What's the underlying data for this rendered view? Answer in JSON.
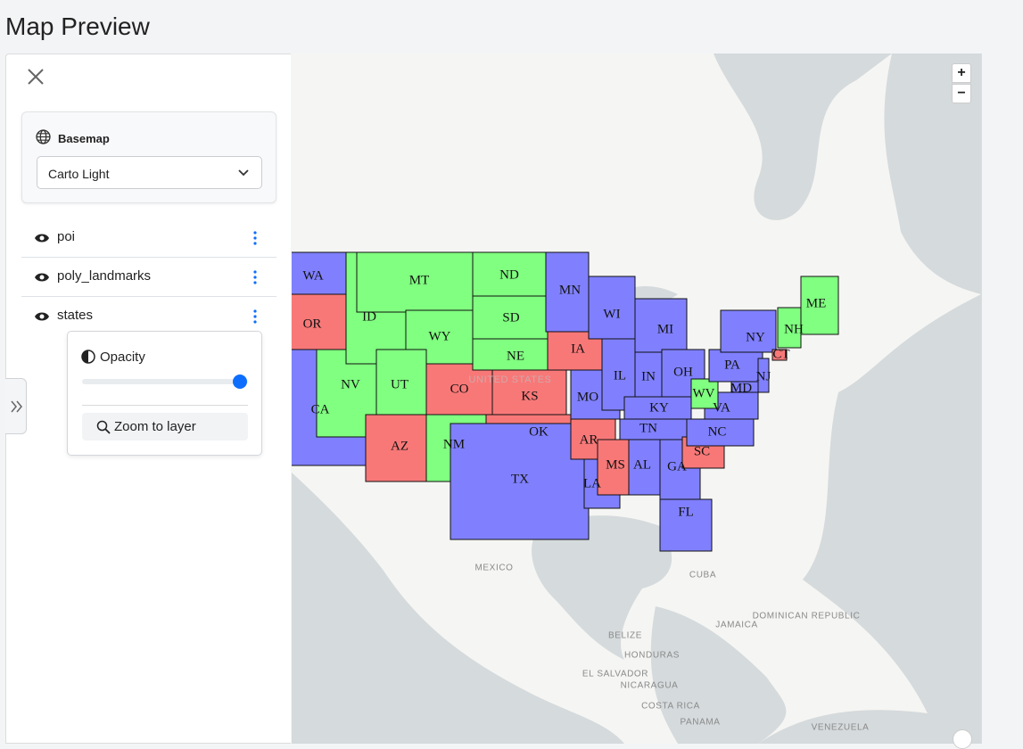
{
  "header": {
    "title": "Map Preview"
  },
  "sidebar": {
    "basemap": {
      "label": "Basemap",
      "selected": "Carto Light"
    },
    "layers": [
      {
        "name": "poi"
      },
      {
        "name": "poly_landmarks"
      },
      {
        "name": "states"
      }
    ],
    "layer_menu": {
      "opacity_label": "Opacity",
      "action": "Zoom to layer"
    }
  },
  "map": {
    "zoom": {
      "in": "+",
      "out": "−"
    },
    "place_labels": [
      "UNITED STATES",
      "MEXICO",
      "CUBA",
      "JAMAICA",
      "DOMINICAN REPUBLIC",
      "BELIZE",
      "HONDURAS",
      "EL SALVADOR",
      "NICARAGUA",
      "COSTA RICA",
      "PANAMA",
      "VENEZUELA"
    ],
    "states": [
      {
        "label": "WA",
        "color": "#8080ff"
      },
      {
        "label": "OR",
        "color": "#f87878"
      },
      {
        "label": "CA",
        "color": "#8080ff"
      },
      {
        "label": "NV",
        "color": "#80ff80"
      },
      {
        "label": "ID",
        "color": "#80ff80"
      },
      {
        "label": "MT",
        "color": "#80ff80"
      },
      {
        "label": "WY",
        "color": "#80ff80"
      },
      {
        "label": "UT",
        "color": "#80ff80"
      },
      {
        "label": "AZ",
        "color": "#f87878"
      },
      {
        "label": "CO",
        "color": "#f87878"
      },
      {
        "label": "NM",
        "color": "#80ff80"
      },
      {
        "label": "ND",
        "color": "#80ff80"
      },
      {
        "label": "SD",
        "color": "#80ff80"
      },
      {
        "label": "NE",
        "color": "#80ff80"
      },
      {
        "label": "KS",
        "color": "#f87878"
      },
      {
        "label": "OK",
        "color": "#f87878"
      },
      {
        "label": "TX",
        "color": "#8080ff"
      },
      {
        "label": "MN",
        "color": "#8080ff"
      },
      {
        "label": "IA",
        "color": "#f87878"
      },
      {
        "label": "MO",
        "color": "#8080ff"
      },
      {
        "label": "AR",
        "color": "#f87878"
      },
      {
        "label": "LA",
        "color": "#8080ff"
      },
      {
        "label": "WI",
        "color": "#8080ff"
      },
      {
        "label": "IL",
        "color": "#8080ff"
      },
      {
        "label": "MI",
        "color": "#8080ff"
      },
      {
        "label": "IN",
        "color": "#8080ff"
      },
      {
        "label": "OH",
        "color": "#8080ff"
      },
      {
        "label": "KY",
        "color": "#8080ff"
      },
      {
        "label": "TN",
        "color": "#8080ff"
      },
      {
        "label": "MS",
        "color": "#f87878"
      },
      {
        "label": "AL",
        "color": "#8080ff"
      },
      {
        "label": "GA",
        "color": "#8080ff"
      },
      {
        "label": "FL",
        "color": "#8080ff"
      },
      {
        "label": "SC",
        "color": "#f87878"
      },
      {
        "label": "NC",
        "color": "#8080ff"
      },
      {
        "label": "VA",
        "color": "#8080ff"
      },
      {
        "label": "WV",
        "color": "#80ff80"
      },
      {
        "label": "PA",
        "color": "#8080ff"
      },
      {
        "label": "NY",
        "color": "#8080ff"
      },
      {
        "label": "MD",
        "color": "#8080ff"
      },
      {
        "label": "NJ",
        "color": "#8080ff"
      },
      {
        "label": "NH",
        "color": "#80ff80"
      },
      {
        "label": "ME",
        "color": "#80ff80"
      },
      {
        "label": "CT",
        "color": "#f87878"
      }
    ]
  }
}
